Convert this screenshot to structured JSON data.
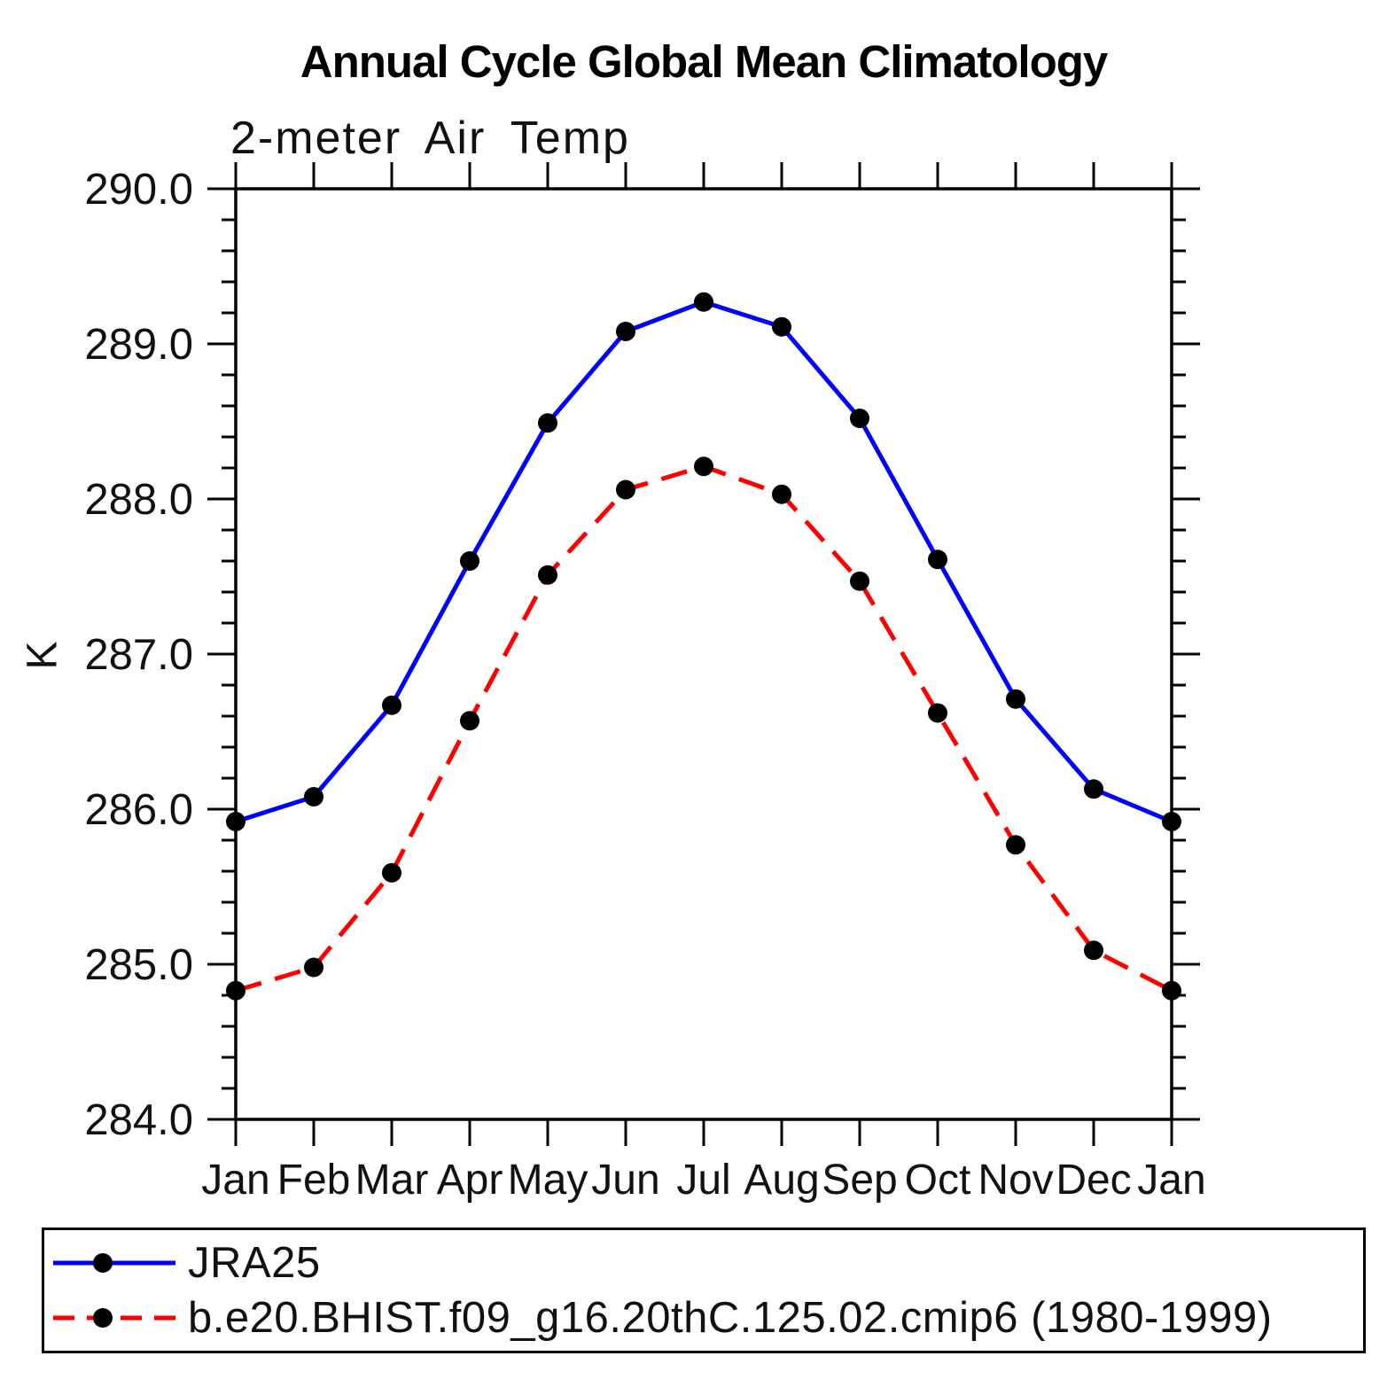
{
  "title": "Annual Cycle Global Mean Climatology",
  "subtitle": "2-meter Air Temp",
  "chart_data": {
    "type": "line",
    "title": "Annual Cycle Global Mean Climatology",
    "subtitle": "2-meter Air Temp",
    "xlabel": "",
    "ylabel": "K",
    "categories": [
      "Jan",
      "Feb",
      "Mar",
      "Apr",
      "May",
      "Jun",
      "Jul",
      "Aug",
      "Sep",
      "Oct",
      "Nov",
      "Dec",
      "Jan"
    ],
    "ylim": [
      284.0,
      290.0
    ],
    "y_major_step": 1.0,
    "y_minor_step": 0.2,
    "y_tick_labels": [
      "284.0",
      "285.0",
      "286.0",
      "287.0",
      "288.0",
      "289.0",
      "290.0"
    ],
    "grid": false,
    "legend_position": "bottom",
    "series": [
      {
        "name": "JRA25",
        "color": "#0000ff",
        "style": "solid",
        "marker": "circle",
        "marker_color": "#000000",
        "values": [
          285.92,
          286.08,
          286.67,
          287.6,
          288.49,
          289.08,
          289.27,
          289.11,
          288.52,
          287.61,
          286.71,
          286.13,
          285.92
        ]
      },
      {
        "name": "b.e20.BHIST.f09_g16.20thC.125.02.cmip6 (1980-1999)",
        "color": "#ff0000",
        "style": "dashed",
        "marker": "circle",
        "marker_color": "#000000",
        "values": [
          284.83,
          284.98,
          285.59,
          286.57,
          287.51,
          288.06,
          288.21,
          288.03,
          287.47,
          286.62,
          285.77,
          285.09,
          284.83
        ]
      }
    ]
  }
}
